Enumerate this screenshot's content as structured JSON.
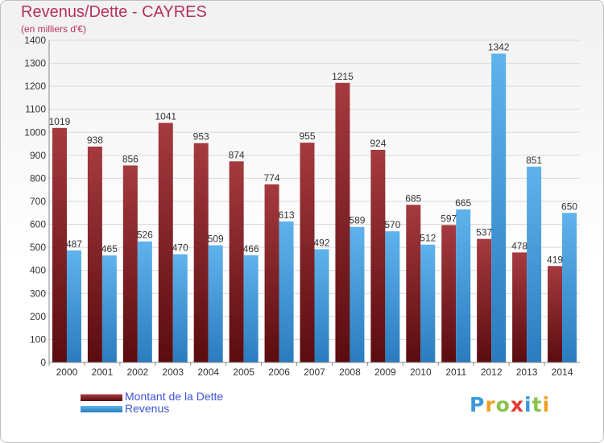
{
  "title": "Revenus/Dette - CAYRES",
  "subtitle": "(en milliers d'€)",
  "legend": {
    "dette": "Montant de la Dette",
    "revenus": "Revenus"
  },
  "logo": {
    "letters": [
      "P",
      "r",
      "o",
      "x",
      "i",
      "t",
      "i"
    ],
    "colors": [
      "#3a9ad9",
      "#f0a020",
      "#8bc34a",
      "#e53935",
      "#3a9ad9",
      "#8bc34a",
      "#f0a020"
    ]
  },
  "colors": {
    "dette_top": "#a53a3f",
    "dette_bottom": "#5a0c0f",
    "revenus_top": "#5fb3ec",
    "revenus_bottom": "#2a7cbf",
    "axis_label": "#333333",
    "grid": "#d9d9d9"
  },
  "chart_data": {
    "type": "bar",
    "categories": [
      "2000",
      "2001",
      "2002",
      "2003",
      "2004",
      "2005",
      "2006",
      "2007",
      "2008",
      "2009",
      "2010",
      "2011",
      "2012",
      "2013",
      "2014"
    ],
    "series": [
      {
        "name": "Montant de la Dette",
        "values": [
          1019,
          938,
          856,
          1041,
          953,
          874,
          774,
          955,
          1215,
          924,
          685,
          597,
          537,
          478,
          419
        ]
      },
      {
        "name": "Revenus",
        "values": [
          487,
          465,
          526,
          470,
          509,
          466,
          613,
          492,
          589,
          570,
          512,
          665,
          1342,
          851,
          650
        ]
      }
    ],
    "ylim": [
      0,
      1400
    ],
    "ytick_step": 100,
    "grid": true,
    "legend": "bottom-left"
  }
}
